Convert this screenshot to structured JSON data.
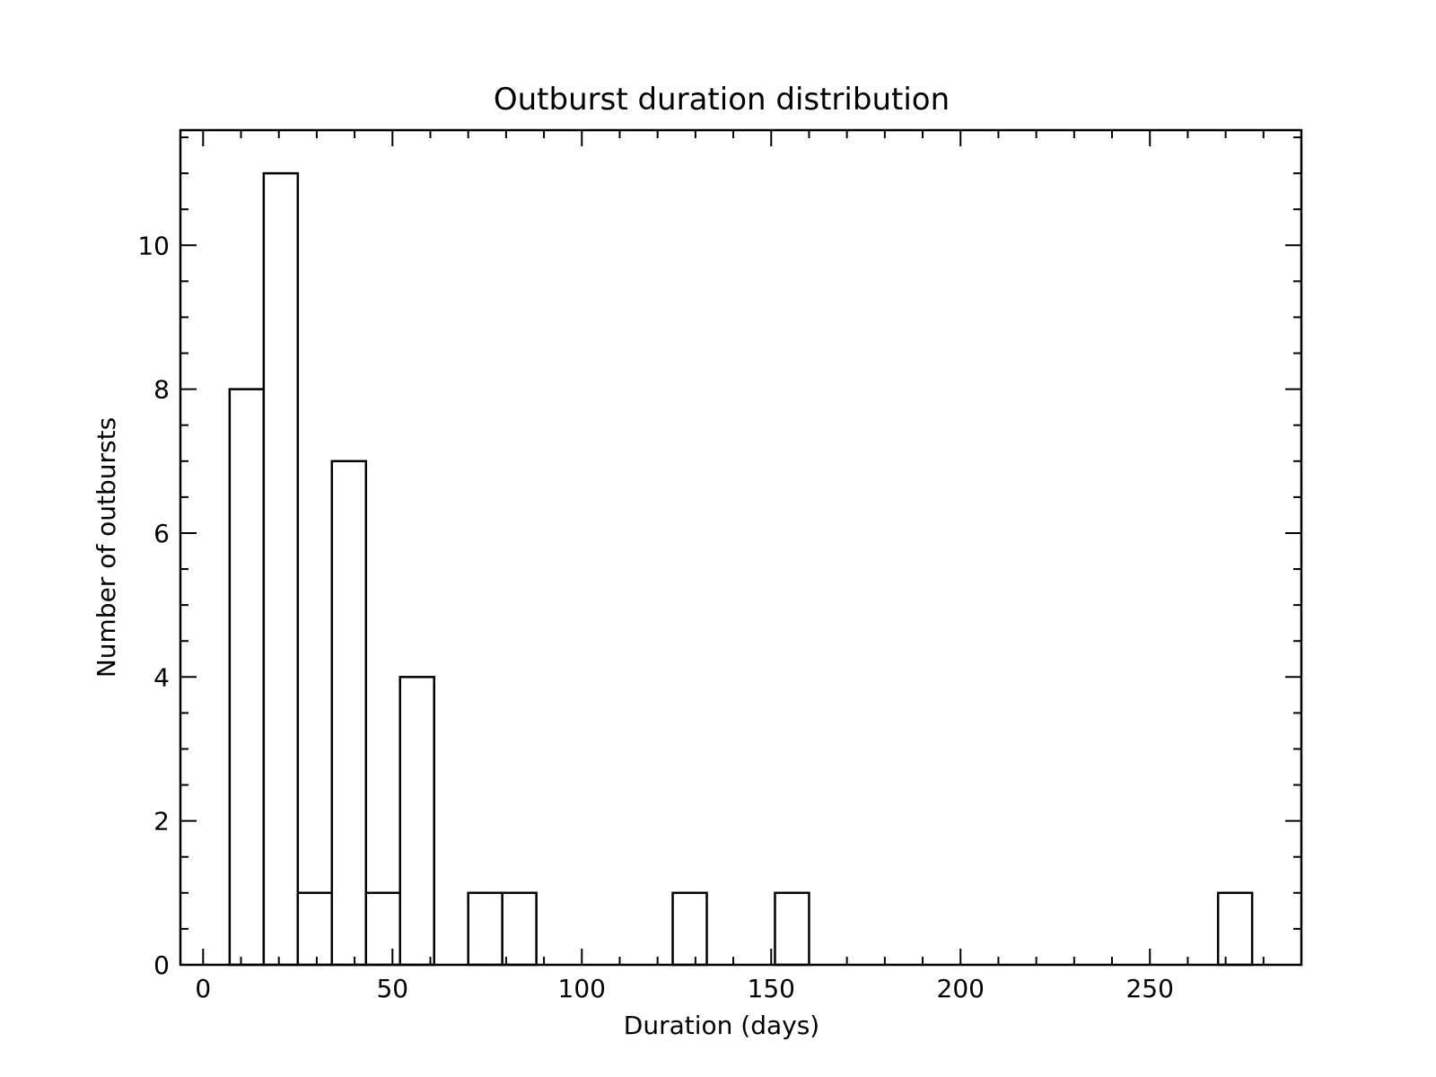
{
  "chart_data": {
    "type": "bar",
    "title": "Outburst duration distribution",
    "xlabel": "Duration (days)",
    "ylabel": "Number of outbursts",
    "xlim": [
      -6,
      290
    ],
    "ylim": [
      0,
      11.6
    ],
    "bin_width": 9,
    "bars": [
      {
        "x0": 7,
        "x1": 16,
        "count": 8
      },
      {
        "x0": 16,
        "x1": 25,
        "count": 11
      },
      {
        "x0": 25,
        "x1": 34,
        "count": 1
      },
      {
        "x0": 34,
        "x1": 43,
        "count": 7
      },
      {
        "x0": 43,
        "x1": 52,
        "count": 1
      },
      {
        "x0": 52,
        "x1": 61,
        "count": 4
      },
      {
        "x0": 70,
        "x1": 79,
        "count": 1
      },
      {
        "x0": 79,
        "x1": 88,
        "count": 1
      },
      {
        "x0": 124,
        "x1": 133,
        "count": 1
      },
      {
        "x0": 151,
        "x1": 160,
        "count": 1
      },
      {
        "x0": 268,
        "x1": 277,
        "count": 1
      }
    ],
    "x_ticks": [
      0,
      50,
      100,
      150,
      200,
      250
    ],
    "x_tick_labels": [
      "0",
      "50",
      "100",
      "150",
      "200",
      "250"
    ],
    "y_ticks": [
      0,
      2,
      4,
      6,
      8,
      10
    ],
    "y_tick_labels": [
      "0",
      "2",
      "4",
      "6",
      "8",
      "10"
    ],
    "x_minor_step": 10,
    "y_minor_step": 0.5,
    "grid": false,
    "legend": "none",
    "colors": {
      "bar_fill": "#ffffff",
      "bar_edge": "#000000"
    }
  }
}
